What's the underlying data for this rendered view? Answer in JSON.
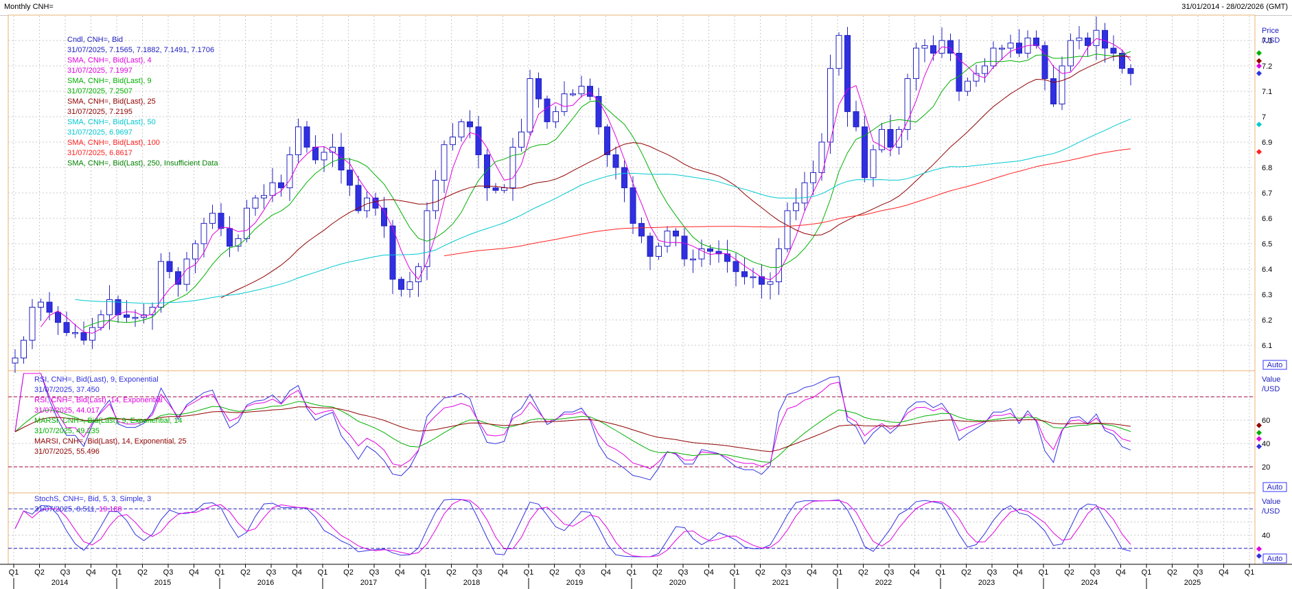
{
  "header": {
    "title": "Monthly CNH=",
    "date_range": "31/01/2014 - 28/02/2026 (GMT)"
  },
  "chart_data": [
    {
      "type": "candlestick",
      "panel": "price",
      "axis_title": [
        "Price",
        "/USD"
      ],
      "ylim": [
        6.0,
        7.4
      ],
      "ytick_labels": [
        "6.1",
        "6.2",
        "6.3",
        "6.4",
        "6.5",
        "6.6",
        "6.7",
        "6.8",
        "6.9",
        "7",
        "7.1",
        "7.2",
        "7.3"
      ],
      "auto_label": "Auto",
      "legend": [
        {
          "text": "Cndl, CNH=, Bid",
          "color": "#2020c0"
        },
        {
          "text": "31/07/2025, 7.1565, 7.1882, 7.1491, 7.1706",
          "color": "#2020c0"
        },
        {
          "text": "SMA, CNH=, Bid(Last),  4",
          "color": "#e000e0"
        },
        {
          "text": "31/07/2025, 7.1997",
          "color": "#e000e0"
        },
        {
          "text": "SMA, CNH=, Bid(Last),  9",
          "color": "#00b000"
        },
        {
          "text": "31/07/2025, 7.2507",
          "color": "#00b000"
        },
        {
          "text": "SMA, CNH=, Bid(Last),  25",
          "color": "#900000"
        },
        {
          "text": "31/07/2025, 7.2195",
          "color": "#900000"
        },
        {
          "text": "SMA, CNH=, Bid(Last),  50",
          "color": "#00c8d0"
        },
        {
          "text": "31/07/2025, 6.9697",
          "color": "#00c8d0"
        },
        {
          "text": "SMA, CNH=, Bid(Last),  100",
          "color": "#ff2020"
        },
        {
          "text": "31/07/2025, 6.8617",
          "color": "#ff2020"
        },
        {
          "text": "SMA, CNH=, Bid(Last),  250,  Insufficient Data",
          "color": "#008000"
        }
      ],
      "candles_close": [
        6.05,
        6.12,
        6.25,
        6.27,
        6.23,
        6.19,
        6.15,
        6.15,
        6.12,
        6.17,
        6.22,
        6.28,
        6.22,
        6.21,
        6.21,
        6.22,
        6.25,
        6.43,
        6.39,
        6.34,
        6.44,
        6.5,
        6.58,
        6.62,
        6.56,
        6.49,
        6.52,
        6.64,
        6.68,
        6.69,
        6.74,
        6.72,
        6.85,
        6.96,
        6.88,
        6.83,
        6.86,
        6.88,
        6.79,
        6.73,
        6.63,
        6.68,
        6.64,
        6.57,
        6.36,
        6.32,
        6.35,
        6.41,
        6.63,
        6.75,
        6.89,
        6.92,
        6.98,
        6.96,
        6.85,
        6.72,
        6.71,
        6.72,
        6.88,
        6.94,
        7.15,
        7.07,
        6.98,
        7.02,
        7.09,
        7.09,
        7.12,
        7.08,
        6.96,
        6.85,
        6.8,
        6.72,
        6.58,
        6.53,
        6.45,
        6.49,
        6.55,
        6.53,
        6.44,
        6.44,
        6.48,
        6.47,
        6.46,
        6.43,
        6.39,
        6.37,
        6.37,
        6.34,
        6.35,
        6.48,
        6.63,
        6.66,
        6.74,
        6.78,
        6.9,
        7.19,
        7.32,
        7.02,
        6.96,
        6.76,
        6.87,
        6.95,
        6.88,
        6.95,
        7.15,
        7.27,
        7.28,
        7.25,
        7.3,
        7.25,
        7.1,
        7.14,
        7.17,
        7.2,
        7.27,
        7.27,
        7.29,
        7.25,
        7.31,
        7.28,
        7.15,
        7.05,
        7.2,
        7.3,
        7.31,
        7.28,
        7.34,
        7.27,
        7.25,
        7.19,
        7.17
      ],
      "bullish_fill": "#ffffff",
      "bearish_fill": "#3030e0",
      "moving_averages": [
        {
          "name": "SMA 4",
          "color": "#e000e0"
        },
        {
          "name": "SMA 9",
          "color": "#00b000"
        },
        {
          "name": "SMA 25",
          "color": "#900000"
        },
        {
          "name": "SMA 50",
          "color": "#00c8d0"
        },
        {
          "name": "SMA 100",
          "color": "#ff2020"
        }
      ]
    },
    {
      "type": "line",
      "panel": "rsi",
      "axis_title": [
        "Value",
        "/USD"
      ],
      "ylim": [
        0,
        100
      ],
      "ytick_labels": [
        "20",
        "40",
        "60"
      ],
      "reference_lines": [
        20,
        80
      ],
      "auto_label": "Auto",
      "legend": [
        {
          "text": "RSI, CNH=, Bid(Last),  9,  Exponential",
          "color": "#3030e0"
        },
        {
          "text": "31/07/2025, 37.450",
          "color": "#3030e0"
        },
        {
          "text": "RSI, CNH=, Bid(Last),  14,  Exponential",
          "color": "#e000e0"
        },
        {
          "text": "31/07/2025, 44.017",
          "color": "#e000e0"
        },
        {
          "text": "MARSI, CNH=, Bid(Last),  9,  Exponential, 14",
          "color": "#00b000"
        },
        {
          "text": "31/07/2025, 49.235",
          "color": "#00b000"
        },
        {
          "text": "MARSI, CNH=, Bid(Last),  14,  Exponential, 25",
          "color": "#900000"
        },
        {
          "text": "31/07/2025, 55.496",
          "color": "#900000"
        }
      ]
    },
    {
      "type": "line",
      "panel": "stochastic",
      "axis_title": [
        "Value",
        "/USD"
      ],
      "ylim": [
        0,
        100
      ],
      "ytick_labels": [
        "40"
      ],
      "reference_lines": [
        20,
        80
      ],
      "auto_label": "Auto",
      "legend": [
        {
          "text": "StochS, CNH=, Bid,  5, 3,  Simple,  3",
          "color": "#3030e0"
        },
        {
          "text": "31/07/2025, 8.511, 19.188",
          "color": "#3030e0",
          "value_2_color": "#e000e0"
        }
      ]
    }
  ],
  "x_axis": {
    "quarters": [
      "Q1",
      "Q2",
      "Q3",
      "Q4",
      "Q1",
      "Q2",
      "Q3",
      "Q4",
      "Q1",
      "Q2",
      "Q3",
      "Q4",
      "Q1",
      "Q2",
      "Q3",
      "Q4",
      "Q1",
      "Q2",
      "Q3",
      "Q4",
      "Q1",
      "Q2",
      "Q3",
      "Q4",
      "Q1",
      "Q2",
      "Q3",
      "Q4",
      "Q1",
      "Q2",
      "Q3",
      "Q4",
      "Q1",
      "Q2",
      "Q3",
      "Q4",
      "Q1",
      "Q2",
      "Q3",
      "Q4",
      "Q1",
      "Q2",
      "Q3",
      "Q4",
      "Q1",
      "Q2",
      "Q3",
      "Q4",
      "Q1"
    ],
    "years": [
      "2014",
      "2015",
      "2016",
      "2017",
      "2018",
      "2019",
      "2020",
      "2021",
      "2022",
      "2023",
      "2024",
      "2025"
    ]
  }
}
